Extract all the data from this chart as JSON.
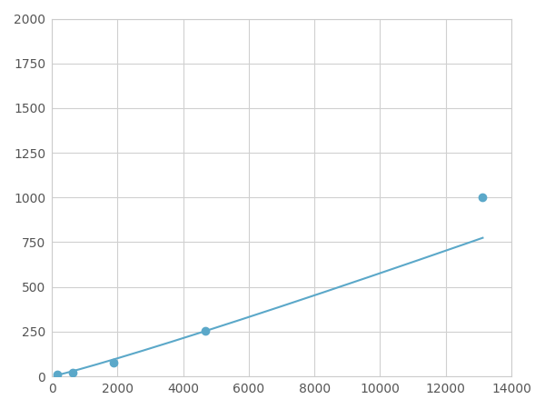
{
  "x": [
    156.25,
    625,
    1875,
    4687.5,
    13125
  ],
  "y": [
    9.4,
    18.8,
    75,
    255,
    1000
  ],
  "line_color": "#5ba8c9",
  "marker_color": "#5ba8c9",
  "marker_size": 6,
  "linewidth": 1.5,
  "xlim": [
    0,
    14000
  ],
  "ylim": [
    0,
    2000
  ],
  "xticks": [
    0,
    2000,
    4000,
    6000,
    8000,
    10000,
    12000,
    14000
  ],
  "yticks": [
    0,
    250,
    500,
    750,
    1000,
    1250,
    1500,
    1750,
    2000
  ],
  "grid_color": "#d0d0d0",
  "background_color": "#ffffff",
  "fig_background": "#ffffff",
  "spine_color": "#cccccc",
  "tick_color": "#555555",
  "tick_fontsize": 10
}
